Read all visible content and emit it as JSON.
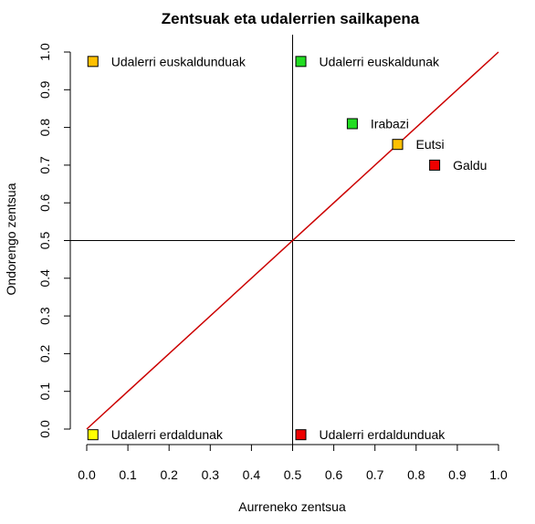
{
  "chart_data": {
    "type": "scatter",
    "title": "Zentsuak eta udalerrien sailkapena",
    "xlabel": "Aurreneko zentsua",
    "ylabel": "Ondorengo zentsua",
    "xlim": [
      0,
      1
    ],
    "ylim": [
      0,
      1
    ],
    "xticks": [
      "0.0",
      "0.1",
      "0.2",
      "0.3",
      "0.4",
      "0.5",
      "0.6",
      "0.7",
      "0.8",
      "0.9",
      "1.0"
    ],
    "yticks": [
      "0.0",
      "0.1",
      "0.2",
      "0.3",
      "0.4",
      "0.5",
      "0.6",
      "0.7",
      "0.8",
      "0.9",
      "1.0"
    ],
    "reference_lines": {
      "vertical_x": 0.5,
      "horizontal_y": 0.5,
      "diagonal": {
        "from": [
          0,
          0
        ],
        "to": [
          1,
          1
        ],
        "color": "#cc0000"
      }
    },
    "points": [
      {
        "x": 0.015,
        "y": 0.975,
        "label": "Udalerri euskaldunduak",
        "color": "#ffc000"
      },
      {
        "x": 0.52,
        "y": 0.975,
        "label": "Udalerri euskaldunak",
        "color": "#22dd22"
      },
      {
        "x": 0.645,
        "y": 0.81,
        "label": "Irabazi",
        "color": "#22dd22"
      },
      {
        "x": 0.755,
        "y": 0.755,
        "label": "Eutsi",
        "color": "#ffc000"
      },
      {
        "x": 0.845,
        "y": 0.7,
        "label": "Galdu",
        "color": "#ee0000"
      },
      {
        "x": 0.015,
        "y": -0.015,
        "label": "Udalerri erdaldunak",
        "color": "#ffff00"
      },
      {
        "x": 0.52,
        "y": -0.015,
        "label": "Udalerri erdaldunduak",
        "color": "#ee0000"
      }
    ]
  }
}
